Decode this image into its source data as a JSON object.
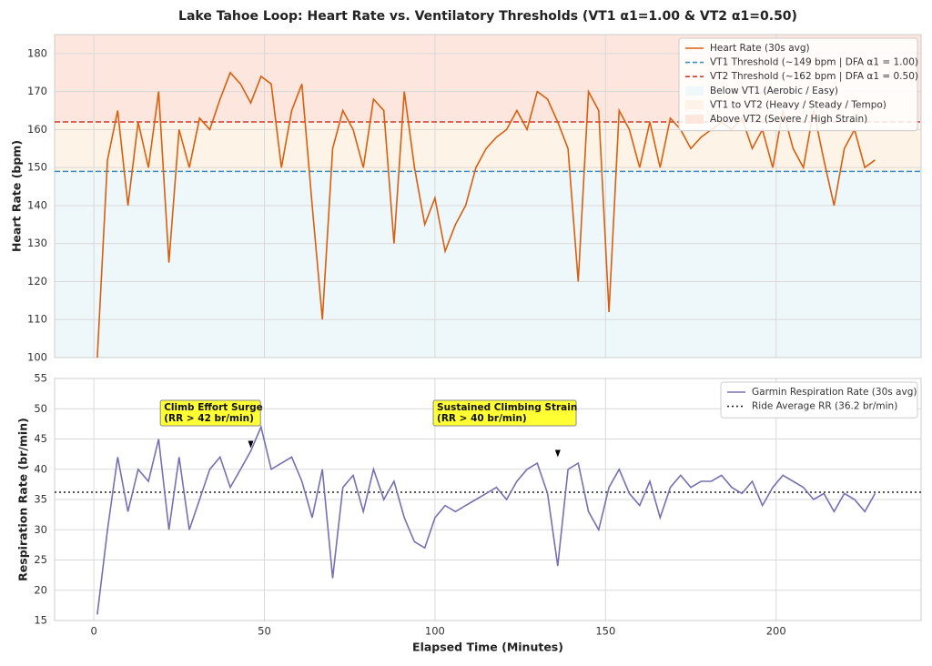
{
  "title": "Lake Tahoe Loop: Heart Rate vs. Ventilatory Thresholds (VT1 α1=1.00 & VT2 α1=0.50)",
  "chart_data": [
    {
      "type": "line",
      "ylabel": "Heart Rate (bpm)",
      "x": [
        1,
        4,
        7,
        10,
        13,
        16,
        19,
        22,
        25,
        28,
        31,
        34,
        37,
        40,
        43,
        46,
        49,
        52,
        55,
        58,
        61,
        64,
        67,
        70,
        73,
        76,
        79,
        82,
        85,
        88,
        91,
        94,
        97,
        100,
        103,
        106,
        109,
        112,
        115,
        118,
        121,
        124,
        127,
        130,
        133,
        136,
        139,
        142,
        145,
        148,
        151,
        154,
        157,
        160,
        163,
        166,
        169,
        172,
        175,
        178,
        181,
        184,
        187,
        190,
        193,
        196,
        199,
        202,
        205,
        208,
        211,
        214,
        217,
        220,
        223,
        226,
        229
      ],
      "series": [
        {
          "name": "Heart Rate (30s avg)",
          "color": "#d95f0e",
          "values": [
            100,
            152,
            165,
            140,
            162,
            150,
            170,
            125,
            160,
            150,
            163,
            160,
            168,
            175,
            172,
            167,
            174,
            172,
            150,
            165,
            172,
            140,
            110,
            155,
            165,
            160,
            150,
            168,
            165,
            130,
            170,
            150,
            135,
            142,
            128,
            135,
            140,
            150,
            155,
            158,
            160,
            165,
            160,
            170,
            168,
            162,
            155,
            120,
            170,
            165,
            112,
            165,
            160,
            150,
            162,
            150,
            163,
            160,
            155,
            158,
            160,
            162,
            160,
            163,
            155,
            160,
            150,
            165,
            155,
            150,
            165,
            152,
            140,
            155,
            160,
            150,
            152
          ]
        }
      ],
      "thresholds": [
        {
          "name": "VT1 Threshold (~149 bpm | DFA α1 = 1.00)",
          "value": 149,
          "color": "#3a8fc7"
        },
        {
          "name": "VT2 Threshold (~162 bpm | DFA α1 = 0.50)",
          "value": 162,
          "color": "#d0392f"
        }
      ],
      "zones": [
        {
          "name": "Below VT1 (Aerobic / Easy)",
          "range": [
            100,
            149
          ],
          "color": "#eef7fa"
        },
        {
          "name": "VT1 to VT2 (Heavy / Steady / Tempo)",
          "range": [
            149,
            162
          ],
          "color": "#fdf3e6"
        },
        {
          "name": "Above VT2 (Severe / High Strain)",
          "range": [
            162,
            185
          ],
          "color": "#fde6dd"
        }
      ],
      "xlim": [
        -11.5,
        242.5
      ],
      "ylim": [
        100,
        185
      ],
      "xticks": [
        0,
        50,
        100,
        150,
        200
      ],
      "yticks": [
        100,
        110,
        120,
        130,
        140,
        150,
        160,
        170,
        180
      ],
      "grid": true,
      "legend": "upper right"
    },
    {
      "type": "line",
      "ylabel": "Respiration Rate (br/min)",
      "xlabel": "Elapsed Time (Minutes)",
      "x": [
        1,
        4,
        7,
        10,
        13,
        16,
        19,
        22,
        25,
        28,
        31,
        34,
        37,
        40,
        43,
        46,
        49,
        52,
        55,
        58,
        61,
        64,
        67,
        70,
        73,
        76,
        79,
        82,
        85,
        88,
        91,
        94,
        97,
        100,
        103,
        106,
        109,
        112,
        115,
        118,
        121,
        124,
        127,
        130,
        133,
        136,
        139,
        142,
        145,
        148,
        151,
        154,
        157,
        160,
        163,
        166,
        169,
        172,
        175,
        178,
        181,
        184,
        187,
        190,
        193,
        196,
        199,
        202,
        205,
        208,
        211,
        214,
        217,
        220,
        223,
        226,
        229
      ],
      "series": [
        {
          "name": "Garmin Respiration Rate (30s avg)",
          "color": "#7570b3",
          "values": [
            16,
            30,
            42,
            33,
            40,
            38,
            45,
            30,
            42,
            30,
            35,
            40,
            42,
            37,
            40,
            43,
            47,
            40,
            41,
            42,
            38,
            32,
            40,
            22,
            37,
            39,
            33,
            40,
            35,
            38,
            32,
            28,
            27,
            32,
            34,
            33,
            34,
            35,
            36,
            37,
            35,
            38,
            40,
            41,
            36,
            24,
            40,
            41,
            33,
            30,
            37,
            40,
            36,
            34,
            38,
            32,
            37,
            39,
            37,
            38,
            38,
            39,
            37,
            36,
            38,
            34,
            37,
            39,
            38,
            37,
            35,
            36,
            33,
            36,
            35,
            33,
            36
          ]
        }
      ],
      "thresholds": [
        {
          "name": "Ride Average RR (36.2 br/min)",
          "value": 36.2,
          "color": "#222222"
        }
      ],
      "annotations": [
        {
          "lines": [
            "Climb Effort Surge",
            "(RR > 42 br/min)"
          ],
          "xy": [
            46,
            43.5
          ]
        },
        {
          "lines": [
            "Sustained Climbing Strain",
            "(RR > 40 br/min)"
          ],
          "xy": [
            136,
            42
          ]
        }
      ],
      "xlim": [
        -11.5,
        242.5
      ],
      "ylim": [
        15,
        55
      ],
      "xticks": [
        0,
        50,
        100,
        150,
        200
      ],
      "yticks": [
        15,
        20,
        25,
        30,
        35,
        40,
        45,
        50,
        55
      ],
      "grid": true,
      "legend": "upper right"
    }
  ]
}
